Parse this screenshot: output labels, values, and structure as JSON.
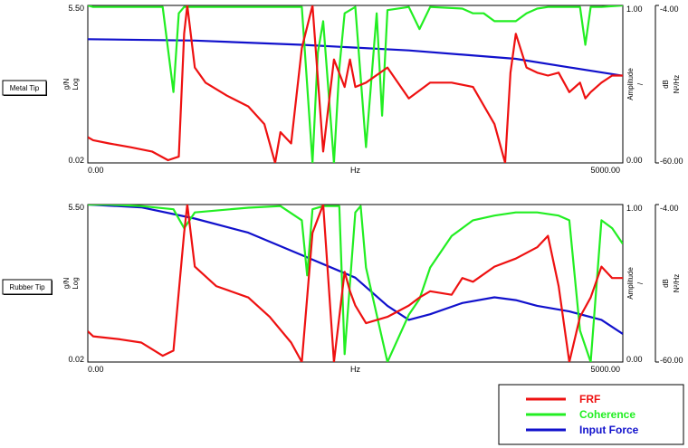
{
  "colors": {
    "frf": "#ee1111",
    "coherence": "#22ee22",
    "input_force": "#1111cc"
  },
  "legend": [
    {
      "label": "FRF",
      "color": "#ee1111"
    },
    {
      "label": "Coherence",
      "color": "#22ee22"
    },
    {
      "label": "Input Force",
      "color": "#1111cc"
    }
  ],
  "chart_data": [
    {
      "type": "line",
      "row_label": "Metal Tip",
      "xlabel": "Hz",
      "x_ticks": [
        "0.00",
        "5000.00"
      ],
      "xlim": [
        0,
        5000
      ],
      "left_axis": {
        "label_unit": "g/N",
        "label_scale": "Log",
        "ticks": [
          "5.50",
          "0.02"
        ],
        "range": [
          0.02,
          5.5
        ],
        "scale": "log"
      },
      "coherence_axis": {
        "label_unit": "Amplitude",
        "label_scale": "/",
        "ticks": [
          "1.00",
          "0.00"
        ],
        "range": [
          0,
          1
        ]
      },
      "force_axis": {
        "label_unit": "dB",
        "label_scale": "N²/Hz",
        "ticks": [
          "-4.00",
          "-60.00"
        ],
        "range": [
          -60,
          -4
        ]
      },
      "series": [
        {
          "name": "FRF",
          "x": [
            0,
            50,
            200,
            400,
            600,
            750,
            850,
            900,
            930,
            1000,
            1100,
            1300,
            1500,
            1650,
            1750,
            1800,
            1900,
            2000,
            2100,
            2200,
            2300,
            2400,
            2450,
            2500,
            2600,
            2800,
            3000,
            3200,
            3400,
            3600,
            3800,
            3900,
            3950,
            4000,
            4100,
            4200,
            4300,
            4400,
            4500,
            4600,
            4650,
            4700,
            4800,
            4900,
            5000
          ],
          "y": [
            0.05,
            0.045,
            0.04,
            0.035,
            0.03,
            0.022,
            0.025,
            2.0,
            5.5,
            0.6,
            0.35,
            0.22,
            0.15,
            0.08,
            0.02,
            0.06,
            0.04,
            1.2,
            5.5,
            0.03,
            0.8,
            0.3,
            0.8,
            0.3,
            0.35,
            0.6,
            0.2,
            0.35,
            0.35,
            0.3,
            0.08,
            0.02,
            0.5,
            2.0,
            0.6,
            0.5,
            0.45,
            0.5,
            0.25,
            0.35,
            0.2,
            0.25,
            0.35,
            0.45,
            0.45
          ]
        },
        {
          "name": "Coherence",
          "x": [
            0,
            50,
            400,
            700,
            800,
            850,
            900,
            1000,
            1500,
            2000,
            2100,
            2150,
            2200,
            2300,
            2350,
            2400,
            2500,
            2600,
            2700,
            2750,
            2800,
            3000,
            3100,
            3200,
            3500,
            3600,
            3700,
            3800,
            4000,
            4100,
            4200,
            4300,
            4400,
            4500,
            4600,
            4650,
            4700,
            4800,
            5000
          ],
          "y": [
            1.0,
            0.99,
            0.99,
            0.99,
            0.45,
            0.95,
            0.99,
            0.99,
            0.99,
            0.99,
            0.0,
            0.7,
            0.9,
            0.0,
            0.6,
            0.95,
            0.99,
            0.1,
            0.95,
            0.3,
            0.97,
            0.99,
            0.85,
            0.99,
            0.98,
            0.95,
            0.95,
            0.9,
            0.9,
            0.95,
            0.98,
            0.99,
            0.99,
            0.99,
            0.99,
            0.75,
            0.99,
            0.99,
            1.0
          ]
        },
        {
          "name": "Input Force",
          "x": [
            0,
            1000,
            2000,
            3000,
            4000,
            4500,
            5000
          ],
          "y": [
            -16,
            -16.5,
            -18,
            -20,
            -23,
            -26,
            -29
          ]
        }
      ]
    },
    {
      "type": "line",
      "row_label": "Rubber Tip",
      "xlabel": "Hz",
      "x_ticks": [
        "0.00",
        "5000.00"
      ],
      "xlim": [
        0,
        5000
      ],
      "left_axis": {
        "label_unit": "g/N",
        "label_scale": "Log",
        "ticks": [
          "5.50",
          "0.02"
        ],
        "range": [
          0.02,
          5.5
        ],
        "scale": "log"
      },
      "coherence_axis": {
        "label_unit": "Amplitude",
        "label_scale": "/",
        "ticks": [
          "1.00",
          "0.00"
        ],
        "range": [
          0,
          1
        ]
      },
      "force_axis": {
        "label_unit": "dB",
        "label_scale": "N²/Hz",
        "ticks": [
          "-4.00",
          "-60.00"
        ],
        "range": [
          -60,
          -4
        ]
      },
      "series": [
        {
          "name": "FRF",
          "x": [
            0,
            50,
            300,
            500,
            700,
            800,
            900,
            930,
            1000,
            1200,
            1500,
            1700,
            1900,
            2000,
            2100,
            2200,
            2300,
            2400,
            2450,
            2500,
            2600,
            2800,
            3000,
            3100,
            3200,
            3400,
            3500,
            3600,
            3800,
            4000,
            4200,
            4300,
            4400,
            4500,
            4600,
            4700,
            4800,
            4900,
            5000
          ],
          "y": [
            0.06,
            0.05,
            0.045,
            0.04,
            0.025,
            0.03,
            2.0,
            5.5,
            0.6,
            0.3,
            0.2,
            0.1,
            0.04,
            0.02,
            2.0,
            5.5,
            0.02,
            0.5,
            0.25,
            0.15,
            0.08,
            0.1,
            0.15,
            0.2,
            0.25,
            0.22,
            0.4,
            0.35,
            0.6,
            0.8,
            1.2,
            1.8,
            0.3,
            0.02,
            0.1,
            0.2,
            0.6,
            0.4,
            0.4
          ]
        },
        {
          "name": "Coherence",
          "x": [
            0,
            200,
            500,
            800,
            900,
            1000,
            1500,
            1800,
            2000,
            2050,
            2100,
            2200,
            2350,
            2400,
            2500,
            2550,
            2600,
            2800,
            3000,
            3100,
            3200,
            3400,
            3600,
            3800,
            4000,
            4200,
            4400,
            4500,
            4600,
            4700,
            4800,
            4900,
            5000
          ],
          "y": [
            1.0,
            1.0,
            0.99,
            0.97,
            0.85,
            0.95,
            0.98,
            0.99,
            0.9,
            0.55,
            0.97,
            0.99,
            0.99,
            0.05,
            0.95,
            0.99,
            0.6,
            0.0,
            0.3,
            0.4,
            0.6,
            0.8,
            0.9,
            0.93,
            0.95,
            0.95,
            0.93,
            0.9,
            0.2,
            0.0,
            0.9,
            0.85,
            0.75
          ]
        },
        {
          "name": "Input Force",
          "x": [
            0,
            500,
            1000,
            1500,
            2000,
            2500,
            2800,
            3000,
            3200,
            3500,
            3800,
            4000,
            4200,
            4500,
            4800,
            5000
          ],
          "y": [
            -4,
            -5,
            -9,
            -14,
            -22,
            -30,
            -40,
            -45,
            -43,
            -39,
            -37,
            -38,
            -40,
            -42,
            -45,
            -50
          ]
        }
      ]
    }
  ]
}
